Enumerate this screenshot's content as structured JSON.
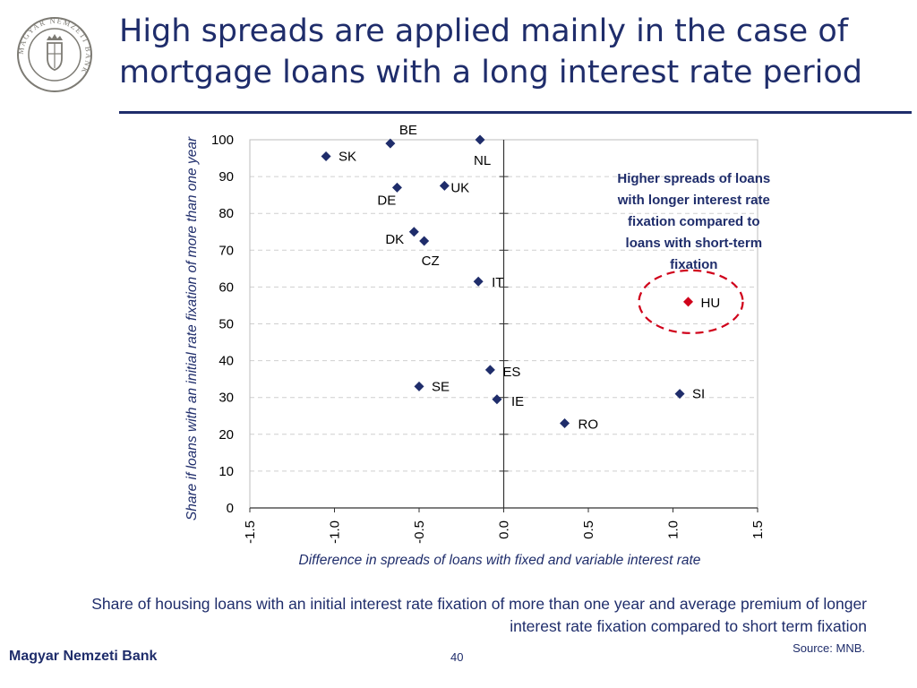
{
  "slide": {
    "title": "High spreads are applied mainly in the case of mortgage loans with a long interest rate  period",
    "caption": "Share of  housing loans with an initial interest rate fixation of more than one year and average premium of longer interest rate fixation compared to short term fixation",
    "source": "Source: MNB.",
    "brand": "Magyar Nemzeti Bank",
    "page_number": "40",
    "logo_text": "MAGYAR NEMZETI BANK"
  },
  "colors": {
    "primary": "#1f2d6b",
    "highlight": "#d0021b",
    "marker": "#1f2d6b"
  },
  "chart_data": {
    "type": "scatter",
    "title": "",
    "xlabel": "Difference in spreads of loans with fixed and variable interest rate",
    "ylabel": "Share if loans with an initial rate fixation of more than one year",
    "xlim": [
      -1.5,
      1.5
    ],
    "ylim": [
      0,
      100
    ],
    "x_ticks": [
      -1.5,
      -1.0,
      -0.5,
      0.0,
      0.5,
      1.0,
      1.5
    ],
    "x_tick_labels": [
      "-1.5",
      "-1.0",
      "-0.5",
      "0.0",
      "0.5",
      "1.0",
      "1.5"
    ],
    "y_ticks": [
      0,
      10,
      20,
      30,
      40,
      50,
      60,
      70,
      80,
      90,
      100
    ],
    "y_tick_labels": [
      "0",
      "10",
      "20",
      "30",
      "40",
      "50",
      "60",
      "70",
      "80",
      "90",
      "100"
    ],
    "grid": "horizontal dashed",
    "points": [
      {
        "label": "SK",
        "x": -1.05,
        "y": 95.5
      },
      {
        "label": "BE",
        "x": -0.67,
        "y": 99.0
      },
      {
        "label": "NL",
        "x": -0.14,
        "y": 100.0
      },
      {
        "label": "DE",
        "x": -0.63,
        "y": 87.0
      },
      {
        "label": "UK",
        "x": -0.35,
        "y": 87.5
      },
      {
        "label": "DK",
        "x": -0.53,
        "y": 75.0
      },
      {
        "label": "CZ",
        "x": -0.47,
        "y": 72.5
      },
      {
        "label": "IT",
        "x": -0.15,
        "y": 61.5
      },
      {
        "label": "HU",
        "x": 1.09,
        "y": 56.0,
        "highlight": true
      },
      {
        "label": "ES",
        "x": -0.08,
        "y": 37.5
      },
      {
        "label": "SE",
        "x": -0.5,
        "y": 33.0
      },
      {
        "label": "IE",
        "x": -0.04,
        "y": 29.5
      },
      {
        "label": "SI",
        "x": 1.04,
        "y": 31.0
      },
      {
        "label": "RO",
        "x": 0.36,
        "y": 23.0
      }
    ],
    "annotation": {
      "text_lines": [
        "Higher spreads of loans",
        "with longer interest rate",
        "fixation compared to",
        "loans with short-term",
        "fixation"
      ],
      "x": 0.7,
      "y": 90
    }
  }
}
